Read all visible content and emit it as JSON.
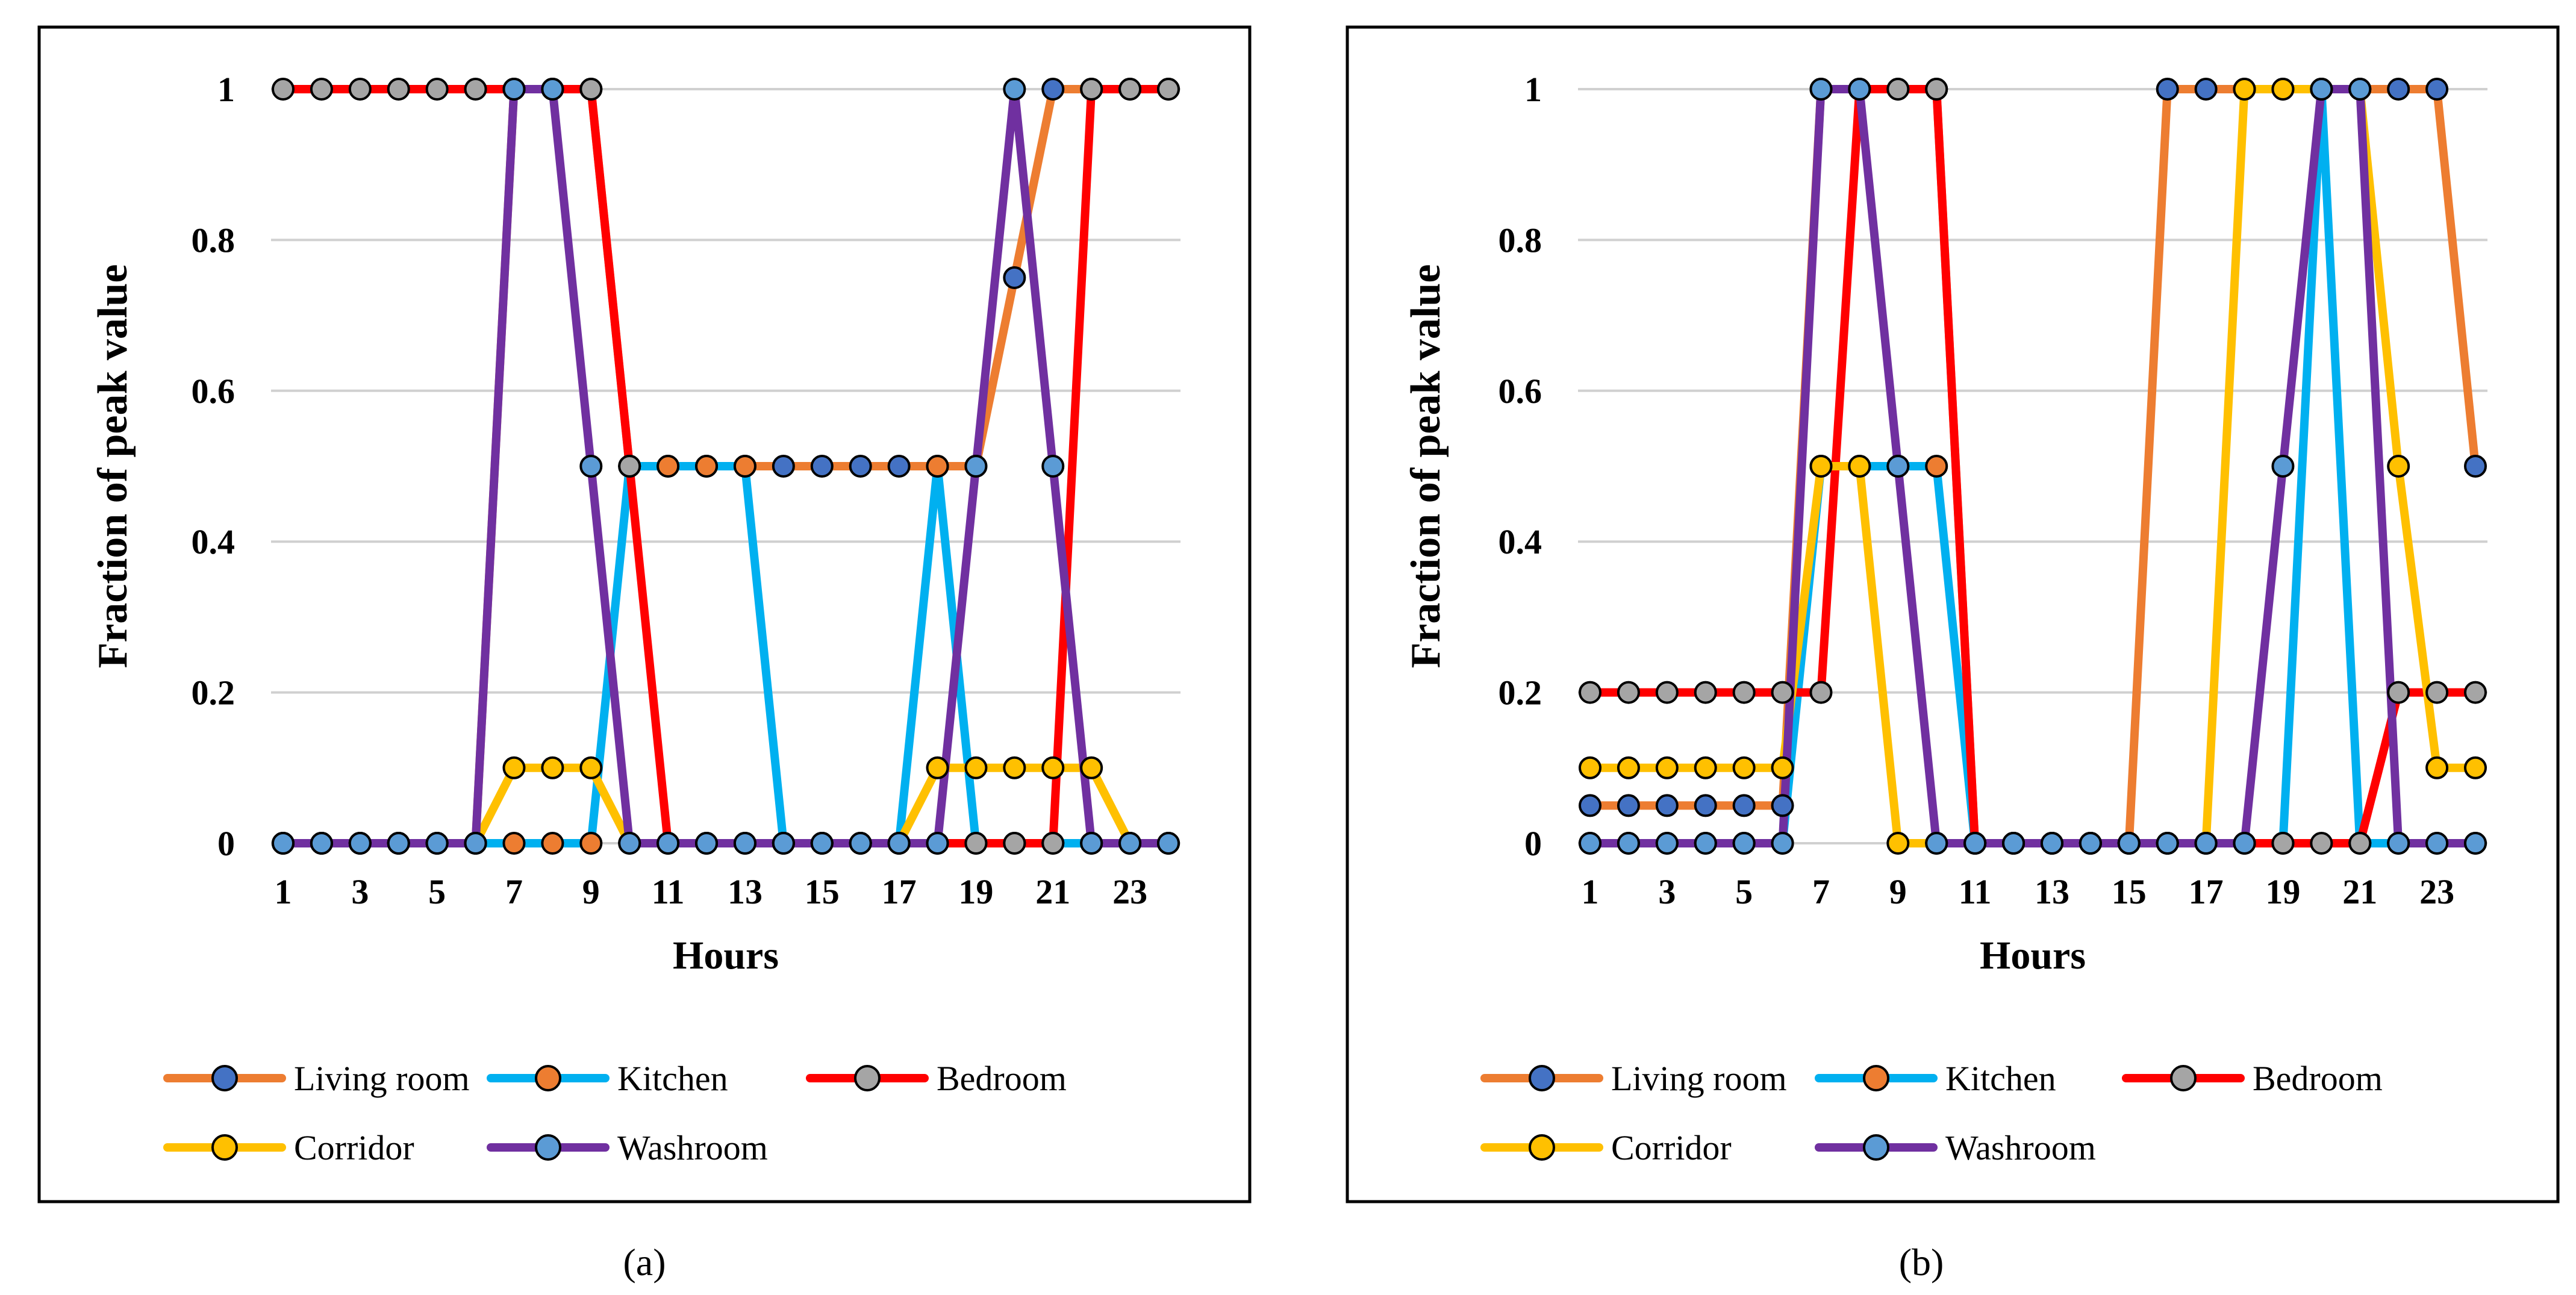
{
  "figure": {
    "panel_captions": [
      "(a)",
      "(b)"
    ]
  },
  "chart_data": [
    {
      "type": "line",
      "panel_caption": "(a)",
      "title": "",
      "xlabel": "Hours",
      "ylabel": "Fraction of peak value",
      "x": [
        1,
        2,
        3,
        4,
        5,
        6,
        7,
        8,
        9,
        10,
        11,
        12,
        13,
        14,
        15,
        16,
        17,
        18,
        19,
        20,
        21,
        22,
        23,
        24
      ],
      "xticks": [
        "1",
        "3",
        "5",
        "7",
        "9",
        "11",
        "13",
        "15",
        "17",
        "19",
        "21",
        "23"
      ],
      "ylim": [
        0,
        1
      ],
      "yticks": [
        "0",
        "0.2",
        "0.4",
        "0.6",
        "0.8",
        "1"
      ],
      "grid": "horizontal",
      "legend": "bottom",
      "series": [
        {
          "name": "Living room",
          "color": "#ED7D31",
          "marker": "#4472C4",
          "values": [
            0,
            0,
            0,
            0,
            0,
            0,
            1,
            1,
            1,
            0.5,
            0.5,
            0.5,
            0.5,
            0.5,
            0.5,
            0.5,
            0.5,
            0.5,
            0.5,
            0.75,
            1,
            1,
            1,
            1
          ]
        },
        {
          "name": "Kitchen",
          "color": "#00B0F0",
          "marker": "#ED7D31",
          "values": [
            0,
            0,
            0,
            0,
            0,
            0,
            0,
            0,
            0,
            0.5,
            0.5,
            0.5,
            0.5,
            0,
            0,
            0,
            0,
            0.5,
            0,
            0,
            0,
            0,
            0,
            0
          ]
        },
        {
          "name": "Bedroom",
          "color": "#FF0000",
          "marker": "#A5A5A5",
          "values": [
            1,
            1,
            1,
            1,
            1,
            1,
            1,
            1,
            1,
            0.5,
            0,
            0,
            0,
            0,
            0,
            0,
            0,
            0,
            0,
            0,
            0,
            1,
            1,
            1
          ]
        },
        {
          "name": "Corridor",
          "color": "#FFC000",
          "marker": "#FFC000",
          "values": [
            0,
            0,
            0,
            0,
            0,
            0,
            0.1,
            0.1,
            0.1,
            0,
            0,
            0,
            0,
            0,
            0,
            0,
            0,
            0.1,
            0.1,
            0.1,
            0.1,
            0.1,
            0,
            0
          ]
        },
        {
          "name": "Washroom",
          "color": "#7030A0",
          "marker": "#5B9BD5",
          "values": [
            0,
            0,
            0,
            0,
            0,
            0,
            1,
            1,
            0.5,
            0,
            0,
            0,
            0,
            0,
            0,
            0,
            0,
            0,
            0.5,
            1,
            0.5,
            0,
            0,
            0
          ]
        }
      ]
    },
    {
      "type": "line",
      "panel_caption": "(b)",
      "title": "",
      "xlabel": "Hours",
      "ylabel": "Fraction of peak value",
      "x": [
        1,
        2,
        3,
        4,
        5,
        6,
        7,
        8,
        9,
        10,
        11,
        12,
        13,
        14,
        15,
        16,
        17,
        18,
        19,
        20,
        21,
        22,
        23,
        24
      ],
      "xticks": [
        "1",
        "3",
        "5",
        "7",
        "9",
        "11",
        "13",
        "15",
        "17",
        "19",
        "21",
        "23"
      ],
      "ylim": [
        0,
        1
      ],
      "yticks": [
        "0",
        "0.2",
        "0.4",
        "0.6",
        "0.8",
        "1"
      ],
      "grid": "horizontal",
      "legend": "bottom",
      "series": [
        {
          "name": "Living room",
          "color": "#ED7D31",
          "marker": "#4472C4",
          "values": [
            0.05,
            0.05,
            0.05,
            0.05,
            0.05,
            0.05,
            1,
            1,
            1,
            1,
            0,
            0,
            0,
            0,
            0,
            1,
            1,
            1,
            1,
            1,
            1,
            1,
            1,
            0.5
          ]
        },
        {
          "name": "Kitchen",
          "color": "#00B0F0",
          "marker": "#ED7D31",
          "values": [
            0,
            0,
            0,
            0,
            0,
            0,
            0.5,
            0.5,
            0.5,
            0.5,
            0,
            0,
            0,
            0,
            0,
            0,
            0,
            0,
            0,
            1,
            0,
            0,
            0,
            0
          ]
        },
        {
          "name": "Bedroom",
          "color": "#FF0000",
          "marker": "#A5A5A5",
          "values": [
            0.2,
            0.2,
            0.2,
            0.2,
            0.2,
            0.2,
            0.2,
            1,
            1,
            1,
            0,
            0,
            0,
            0,
            0,
            0,
            0,
            0,
            0,
            0,
            0,
            0.2,
            0.2,
            0.2
          ]
        },
        {
          "name": "Corridor",
          "color": "#FFC000",
          "marker": "#FFC000",
          "values": [
            0.1,
            0.1,
            0.1,
            0.1,
            0.1,
            0.1,
            0.5,
            0.5,
            0,
            0,
            0,
            0,
            0,
            0,
            0,
            0,
            0,
            1,
            1,
            1,
            1,
            0.5,
            0.1,
            0.1
          ]
        },
        {
          "name": "Washroom",
          "color": "#7030A0",
          "marker": "#5B9BD5",
          "values": [
            0,
            0,
            0,
            0,
            0,
            0,
            1,
            1,
            0.5,
            0,
            0,
            0,
            0,
            0,
            0,
            0,
            0,
            0,
            0.5,
            1,
            1,
            0,
            0,
            0
          ]
        }
      ]
    }
  ]
}
